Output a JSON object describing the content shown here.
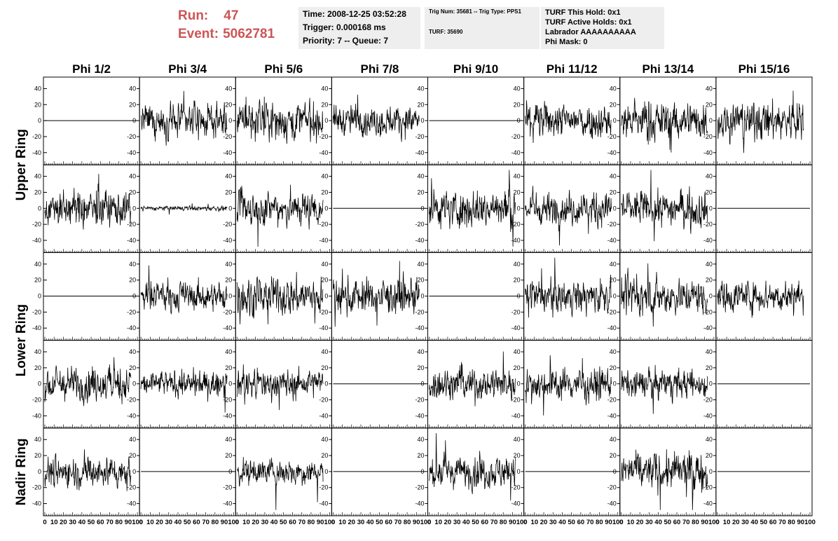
{
  "header": {
    "run_label": "Run:",
    "run_value": "47",
    "event_label": "Event:",
    "event_value": "5062781"
  },
  "info": {
    "time": "Time: 2008-12-25 03:52:28",
    "trigger": "Trigger: 0.000168 ms",
    "priority": "Priority: 7 -- Queue: 7",
    "trig_num": "Trig Num: 35681 -- Trig Type: PPS1",
    "turf": "TURF: 35690",
    "turf_hold": "TURF This Hold: 0x1",
    "turf_active": "TURF Active Holds: 0x1",
    "labrador": "Labrador AAAAAAAAAA",
    "phi_mask": "Phi Mask: 0"
  },
  "colors": {
    "header_text": "#cc5555",
    "info_box_bg": "#eeeeee",
    "trace": "#000000"
  },
  "chart_data": {
    "type": "line",
    "columns": [
      "Phi 1/2",
      "Phi 3/4",
      "Phi 5/6",
      "Phi 7/8",
      "Phi 9/10",
      "Phi 11/12",
      "Phi 13/14",
      "Phi 15/16"
    ],
    "row_groups": [
      {
        "label": "Upper Ring",
        "rows": [
          0,
          1
        ]
      },
      {
        "label": "Lower Ring",
        "rows": [
          2,
          3
        ]
      },
      {
        "label": "Nadir Ring",
        "rows": [
          4
        ]
      }
    ],
    "rows": 5,
    "xlim": [
      0,
      100
    ],
    "ylim": [
      -50,
      50
    ],
    "x_ticks": [
      0,
      10,
      20,
      30,
      40,
      50,
      60,
      70,
      80,
      90,
      100
    ],
    "y_ticks": [
      -40,
      -20,
      0,
      20,
      40
    ],
    "samples_per_trace": 260,
    "x_end": 93,
    "amplitudes": [
      [
        0,
        10,
        12,
        9,
        0,
        11,
        12,
        12
      ],
      [
        11,
        1.5,
        11,
        0,
        12,
        10,
        11,
        0
      ],
      [
        0,
        9,
        12,
        11,
        0,
        10,
        11,
        10
      ],
      [
        11,
        8,
        9,
        0,
        10,
        10,
        9,
        0
      ],
      [
        10,
        0,
        8,
        0,
        10,
        0,
        12,
        0
      ]
    ],
    "right_axis_cols": [
      1,
      2,
      3,
      4,
      5,
      6,
      7
    ]
  }
}
